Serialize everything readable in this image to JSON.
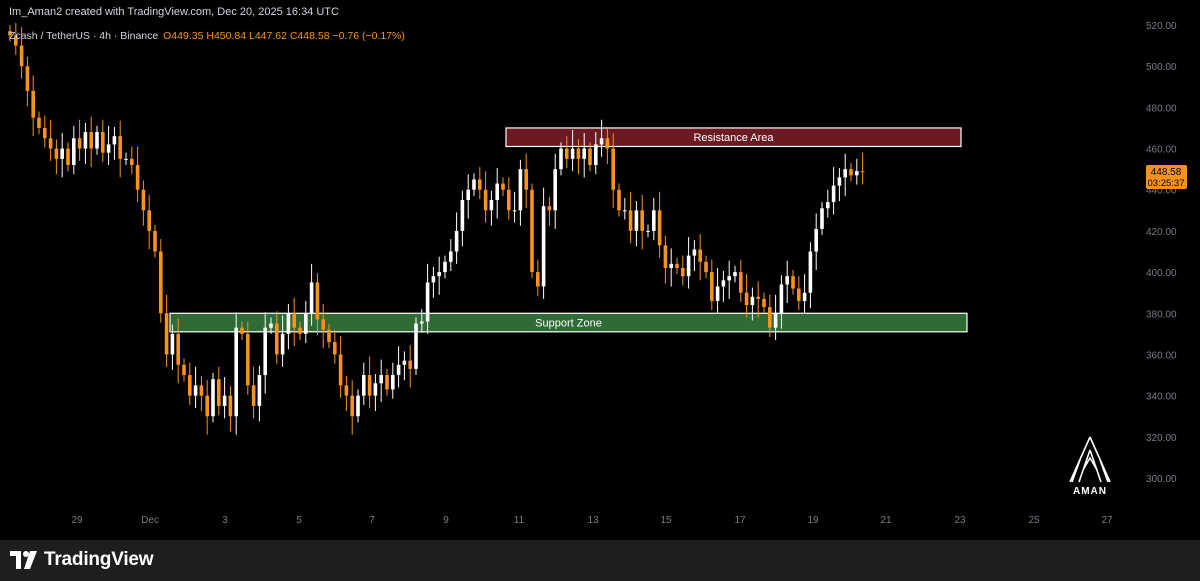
{
  "header": {
    "text": "Im_Aman2 created with TradingView.com, Dec 20, 2025 16:34 UTC"
  },
  "symbol_bar": {
    "symbol": "Zcash / TetherUS · 4h · Binance",
    "open": "O449.35",
    "high": "H450.84",
    "low": "L447.62",
    "close": "C448.58",
    "change": "−0.76 (−0.17%)"
  },
  "price_tag": {
    "price": "448.58",
    "countdown": "03:25:37"
  },
  "footer": {
    "brand": "TradingView"
  },
  "watermark": {
    "text": "AMAN"
  },
  "colors": {
    "up": "#ffffff",
    "down": "#f7931a",
    "background": "#000000",
    "resistance": "#6b1a22",
    "support": "#2e6b35",
    "axis_text": "#787b86"
  },
  "chart_data": {
    "type": "candlestick",
    "timeframe": "4h",
    "y_axis": {
      "min": 300,
      "max": 520,
      "ticks": [
        "300.00",
        "320.00",
        "340.00",
        "360.00",
        "380.00",
        "400.00",
        "420.00",
        "440.00",
        "460.00",
        "480.00",
        "500.00",
        "520.00"
      ]
    },
    "x_axis": {
      "ticks": [
        "29",
        "Dec",
        "3",
        "5",
        "7",
        "9",
        "11",
        "13",
        "15",
        "17",
        "19",
        "21",
        "23",
        "25",
        "27"
      ]
    },
    "zones": [
      {
        "label": "Resistance Area",
        "low": 461,
        "high": 470,
        "color": "#6b1a22"
      },
      {
        "label": "Support Zone",
        "low": 371,
        "high": 380,
        "color": "#2e6b35"
      }
    ],
    "closes": [
      515,
      510,
      500,
      488,
      475,
      470,
      465,
      460,
      455,
      460,
      452,
      465,
      460,
      468,
      460,
      468,
      458,
      462,
      466,
      455,
      455,
      452,
      440,
      430,
      420,
      410,
      380,
      360,
      370,
      355,
      350,
      340,
      345,
      340,
      330,
      348,
      335,
      340,
      330,
      373,
      370,
      345,
      335,
      350,
      373,
      375,
      360,
      370,
      380,
      373,
      370,
      380,
      395,
      377,
      372,
      366,
      360,
      345,
      340,
      330,
      340,
      350,
      340,
      346,
      350,
      343,
      350,
      355,
      357,
      353,
      375,
      376,
      395,
      398,
      400,
      405,
      410,
      420,
      435,
      440,
      445,
      440,
      430,
      435,
      443,
      440,
      430,
      430,
      450,
      440,
      400,
      393,
      432,
      430,
      450,
      460,
      455,
      460,
      455,
      460,
      452,
      462,
      465,
      460,
      440,
      430,
      430,
      420,
      430,
      420,
      420,
      430,
      413,
      402,
      404,
      402,
      398,
      408,
      411,
      405,
      400,
      386,
      393,
      396,
      398,
      400,
      390,
      384,
      388,
      387,
      383,
      373,
      380,
      394,
      398,
      392,
      386,
      390,
      410,
      421,
      431,
      434,
      442,
      446,
      450,
      447,
      449,
      448.58
    ],
    "last_price": 448.58
  }
}
